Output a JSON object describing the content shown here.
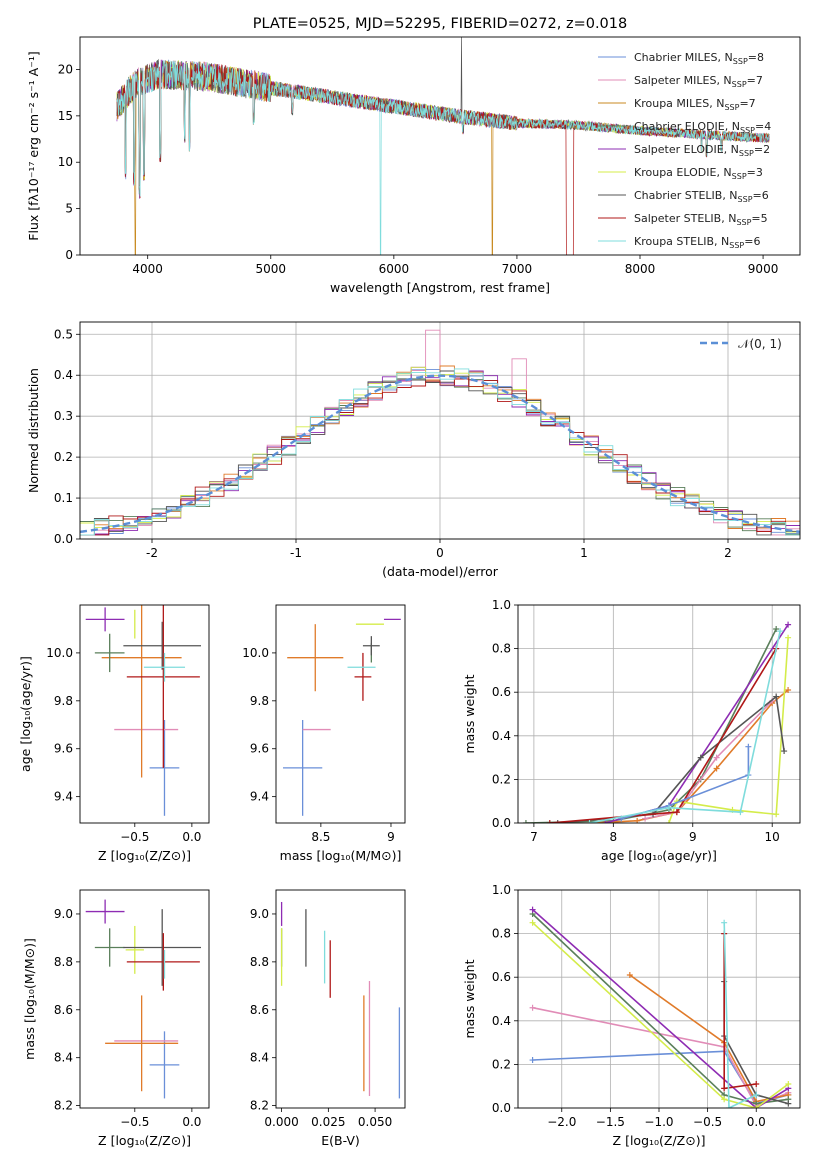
{
  "palette": [
    "#6a8fd8",
    "#e18cb7",
    "#e07b2a",
    "#5a7f5a",
    "#8e2cb3",
    "#d4ec4a",
    "#555555",
    "#b01818",
    "#7fdcdc"
  ],
  "chart_data": [
    {
      "id": "spectrum",
      "type": "line",
      "title": "PLATE=0525, MJD=52295, FIBERID=0272, z=0.018",
      "xlabel": "wavelength [Angstrom, rest frame]",
      "ylabel": "Flux [fλ10⁻¹⁷ erg cm⁻² s⁻¹ A⁻¹]",
      "xlim": [
        3450,
        9300
      ],
      "ylim": [
        0,
        23.5
      ],
      "xticks": [
        4000,
        5000,
        6000,
        7000,
        8000,
        9000
      ],
      "yticks": [
        0,
        5,
        10,
        15,
        20
      ],
      "grid": false,
      "legend_position": "top-right",
      "x_range_data": [
        3750,
        9050
      ],
      "continuum": [
        [
          3750,
          16
        ],
        [
          3900,
          18.5
        ],
        [
          4100,
          19.5
        ],
        [
          4500,
          19.2
        ],
        [
          5000,
          18
        ],
        [
          5500,
          17
        ],
        [
          6000,
          16
        ],
        [
          6500,
          15
        ],
        [
          7000,
          14.2
        ],
        [
          7500,
          14
        ],
        [
          8000,
          13.4
        ],
        [
          8500,
          13
        ],
        [
          9000,
          12.6
        ]
      ],
      "absorption_lines": [
        [
          3820,
          8
        ],
        [
          3890,
          7.5
        ],
        [
          3935,
          6
        ],
        [
          3970,
          8
        ],
        [
          4102,
          10
        ],
        [
          4300,
          12
        ],
        [
          4340,
          11
        ],
        [
          4861,
          14
        ],
        [
          5175,
          15
        ],
        [
          5893,
          0
        ],
        [
          6563,
          13
        ],
        [
          6800,
          0
        ],
        [
          7420,
          0
        ],
        [
          8500,
          11
        ],
        [
          8542,
          10.5
        ],
        [
          8662,
          11
        ]
      ],
      "series": [
        {
          "name": "Chabrier MILES",
          "nssp": "8",
          "color": "#6a8fd8"
        },
        {
          "name": "Salpeter MILES",
          "nssp": "7",
          "color": "#e18cb7"
        },
        {
          "name": "Kroupa MILES",
          "nssp": "7",
          "color": "#c88a20"
        },
        {
          "name": "Chabrier ELODIE",
          "nssp": "4",
          "color": "#5a7f5a"
        },
        {
          "name": "Salpeter ELODIE",
          "nssp": "2",
          "color": "#8e2cb3"
        },
        {
          "name": "Kroupa ELODIE",
          "nssp": "3",
          "color": "#d4ec4a"
        },
        {
          "name": "Chabrier STELIB",
          "nssp": "6",
          "color": "#555555"
        },
        {
          "name": "Salpeter STELIB",
          "nssp": "5",
          "color": "#b01818"
        },
        {
          "name": "Kroupa STELIB",
          "nssp": "6",
          "color": "#7fdcdc"
        }
      ]
    },
    {
      "id": "residuals",
      "type": "histogram",
      "xlabel": "(data-model)/error",
      "ylabel": "Normed distribution",
      "xlim": [
        -2.5,
        2.5
      ],
      "ylim": [
        0,
        0.53
      ],
      "xticks": [
        -2,
        -1,
        0,
        1,
        2
      ],
      "yticks": [
        0.0,
        0.1,
        0.2,
        0.3,
        0.4,
        0.5
      ],
      "grid": true,
      "bin_width": 0.1,
      "gaussian_label": "𝒩(0, 1)",
      "gaussian_color": "#5b8fd6",
      "legend_position": "top-right",
      "highlight_bins": {
        "-0.05": 0.51,
        "0.55": 0.44
      }
    },
    {
      "id": "age_vs_Z",
      "type": "errorbar",
      "xlabel": "Z [log₁₀(Z/Z⊙)]",
      "ylabel": "age  [log₁₀(age/yr)]",
      "xlim": [
        -0.98,
        0.15
      ],
      "ylim": [
        9.29,
        10.2
      ],
      "xticks": [
        -0.5,
        0.0
      ],
      "xticklabels": [
        "−0.5",
        "0.0"
      ],
      "yticks": [
        9.4,
        9.6,
        9.8,
        10.0
      ],
      "grid": false,
      "points": [
        {
          "x": -0.24,
          "xerr": 0.13,
          "y": 9.52,
          "yerr": 0.2,
          "color": "#6a8fd8"
        },
        {
          "x": -0.4,
          "xerr": 0.28,
          "y": 9.68,
          "yerr": 0.0,
          "color": "#e18cb7"
        },
        {
          "x": -0.44,
          "xerr": 0.35,
          "y": 9.98,
          "yerr": 0.5,
          "color": "#e07b2a"
        },
        {
          "x": -0.72,
          "xerr": 0.13,
          "y": 10.0,
          "yerr": 0.08,
          "color": "#5a7f5a"
        },
        {
          "x": -0.76,
          "xerr": 0.17,
          "y": 10.14,
          "yerr": 0.05,
          "color": "#8e2cb3"
        },
        {
          "x": -0.5,
          "xerr": 0.0,
          "y": 10.12,
          "yerr": 0.06,
          "color": "#d4ec4a"
        },
        {
          "x": -0.26,
          "xerr": 0.34,
          "y": 10.03,
          "yerr": 0.1,
          "color": "#555555"
        },
        {
          "x": -0.25,
          "xerr": 0.32,
          "y": 9.9,
          "yerr": 0.38,
          "color": "#b01818"
        },
        {
          "x": -0.24,
          "xerr": 0.18,
          "y": 9.94,
          "yerr": 0.06,
          "color": "#7fdcdc"
        }
      ]
    },
    {
      "id": "age_vs_mass",
      "type": "errorbar",
      "xlabel": "mass [log₁₀(M/M⊙)]",
      "ylabel": "",
      "xlim": [
        8.18,
        9.1
      ],
      "ylim": [
        9.29,
        10.2
      ],
      "xticks": [
        8.5,
        9.0
      ],
      "yticks": [
        9.4,
        9.6,
        9.8,
        10.0
      ],
      "grid": false,
      "points": [
        {
          "x": 8.37,
          "xerr": 0.14,
          "y": 9.52,
          "yerr": 0.2,
          "color": "#6a8fd8"
        },
        {
          "x": 8.47,
          "xerr": 0.1,
          "y": 9.68,
          "yerr": 0.0,
          "color": "#e18cb7"
        },
        {
          "x": 8.46,
          "xerr": 0.2,
          "y": 9.98,
          "yerr": 0.14,
          "color": "#e07b2a"
        },
        {
          "x": 8.86,
          "xerr": 0.0,
          "y": 10.0,
          "yerr": 0.04,
          "color": "#5a7f5a"
        },
        {
          "x": 9.01,
          "xerr": 0.06,
          "y": 10.14,
          "yerr": 0.0,
          "color": "#8e2cb3"
        },
        {
          "x": 8.85,
          "xerr": 0.1,
          "y": 10.12,
          "yerr": 0.0,
          "color": "#d4ec4a"
        },
        {
          "x": 8.86,
          "xerr": 0.06,
          "y": 10.03,
          "yerr": 0.04,
          "color": "#555555"
        },
        {
          "x": 8.8,
          "xerr": 0.06,
          "y": 9.9,
          "yerr": 0.1,
          "color": "#b01818"
        },
        {
          "x": 8.79,
          "xerr": 0.1,
          "y": 9.94,
          "yerr": 0.0,
          "color": "#7fdcdc"
        }
      ]
    },
    {
      "id": "mw_vs_age",
      "type": "line",
      "xlabel": "age  [log₁₀(age/yr)]",
      "ylabel": "mass weight",
      "xlim": [
        6.8,
        10.35
      ],
      "ylim": [
        0,
        1
      ],
      "xticks": [
        7,
        8,
        9,
        10
      ],
      "yticks": [
        0.0,
        0.2,
        0.4,
        0.6,
        0.8,
        1.0
      ],
      "grid": true,
      "series": [
        {
          "color": "#5a7f5a",
          "x": [
            6.9,
            8.0,
            8.7,
            9.1,
            10.05
          ],
          "y": [
            0.0,
            0.01,
            0.06,
            0.2,
            0.89
          ]
        },
        {
          "color": "#e07b2a",
          "x": [
            7.7,
            8.3,
            8.8,
            9.3,
            10.0,
            10.2
          ],
          "y": [
            0.0,
            0.01,
            0.05,
            0.25,
            0.55,
            0.61
          ]
        },
        {
          "color": "#e18cb7",
          "x": [
            8.4,
            8.8,
            9.3,
            10.0
          ],
          "y": [
            0.02,
            0.05,
            0.3,
            0.56
          ]
        },
        {
          "color": "#8e2cb3",
          "x": [
            7.9,
            8.7,
            10.2
          ],
          "y": [
            0.0,
            0.08,
            0.91
          ]
        },
        {
          "color": "#d4ec4a",
          "x": [
            8.7,
            8.8,
            9.5,
            10.05,
            10.2
          ],
          "y": [
            0.0,
            0.1,
            0.06,
            0.04,
            0.85
          ]
        },
        {
          "color": "#555555",
          "x": [
            7.3,
            8.5,
            9.1,
            10.05,
            10.15
          ],
          "y": [
            0.0,
            0.04,
            0.3,
            0.58,
            0.33
          ]
        },
        {
          "color": "#b01818",
          "x": [
            7.2,
            8.8,
            10.05
          ],
          "y": [
            0.0,
            0.05,
            0.8
          ]
        },
        {
          "color": "#6a8fd8",
          "x": [
            8.1,
            8.7,
            9.7,
            9.7
          ],
          "y": [
            0.02,
            0.08,
            0.22,
            0.35
          ]
        },
        {
          "color": "#7fdcdc",
          "x": [
            7.7,
            8.7,
            9.6,
            10.1
          ],
          "y": [
            0.0,
            0.07,
            0.05,
            0.88
          ]
        }
      ]
    },
    {
      "id": "mass_vs_Z",
      "type": "errorbar",
      "xlabel": "Z [log₁₀(Z/Z⊙)]",
      "ylabel": "mass [log₁₀(M/M⊙)]",
      "xlim": [
        -0.98,
        0.15
      ],
      "ylim": [
        8.19,
        9.1
      ],
      "xticks": [
        -0.5,
        0.0
      ],
      "xticklabels": [
        "−0.5",
        "0.0"
      ],
      "yticks": [
        8.2,
        8.4,
        8.6,
        8.8,
        9.0
      ],
      "grid": false,
      "points": [
        {
          "x": -0.24,
          "xerr": 0.13,
          "y": 8.37,
          "yerr": 0.14,
          "color": "#6a8fd8"
        },
        {
          "x": -0.4,
          "xerr": 0.28,
          "y": 8.47,
          "yerr": 0.0,
          "color": "#e18cb7"
        },
        {
          "x": -0.44,
          "xerr": 0.32,
          "y": 8.46,
          "yerr": 0.2,
          "color": "#e07b2a"
        },
        {
          "x": -0.72,
          "xerr": 0.13,
          "y": 8.86,
          "yerr": 0.08,
          "color": "#5a7f5a"
        },
        {
          "x": -0.76,
          "xerr": 0.17,
          "y": 9.01,
          "yerr": 0.05,
          "color": "#8e2cb3"
        },
        {
          "x": -0.5,
          "xerr": 0.08,
          "y": 8.85,
          "yerr": 0.1,
          "color": "#d4ec4a"
        },
        {
          "x": -0.26,
          "xerr": 0.34,
          "y": 8.86,
          "yerr": 0.16,
          "color": "#555555"
        },
        {
          "x": -0.25,
          "xerr": 0.32,
          "y": 8.8,
          "yerr": 0.12,
          "color": "#b01818"
        },
        {
          "x": -0.24,
          "xerr": 0.0,
          "y": 8.79,
          "yerr": 0.06,
          "color": "#7fdcdc"
        }
      ]
    },
    {
      "id": "mass_vs_ebv",
      "type": "errorbar",
      "xlabel": "E(B-V)",
      "ylabel": "",
      "xlim": [
        -0.003,
        0.066
      ],
      "ylim": [
        8.19,
        9.1
      ],
      "xticks": [
        0.0,
        0.025,
        0.05
      ],
      "xticklabels": [
        "0.000",
        "0.025",
        "0.050"
      ],
      "yticks": [
        8.2,
        8.4,
        8.6,
        8.8,
        9.0
      ],
      "grid": false,
      "points": [
        {
          "x": 0.063,
          "xerr": 0.0,
          "y": 8.42,
          "yerr": 0.19,
          "color": "#6a8fd8"
        },
        {
          "x": 0.047,
          "xerr": 0.0,
          "y": 8.48,
          "yerr": 0.24,
          "color": "#e18cb7"
        },
        {
          "x": 0.044,
          "xerr": 0.0,
          "y": 8.46,
          "yerr": 0.2,
          "color": "#e07b2a"
        },
        {
          "x": 0.0,
          "xerr": 0.0,
          "y": 8.86,
          "yerr": 0.08,
          "color": "#5a7f5a"
        },
        {
          "x": 0.0,
          "xerr": 0.0,
          "y": 9.0,
          "yerr": 0.05,
          "color": "#8e2cb3"
        },
        {
          "x": 0.0,
          "xerr": 0.0,
          "y": 8.82,
          "yerr": 0.12,
          "color": "#d4ec4a"
        },
        {
          "x": 0.013,
          "xerr": 0.0,
          "y": 8.9,
          "yerr": 0.12,
          "color": "#555555"
        },
        {
          "x": 0.026,
          "xerr": 0.0,
          "y": 8.77,
          "yerr": 0.12,
          "color": "#b01818"
        },
        {
          "x": 0.023,
          "xerr": 0.0,
          "y": 8.82,
          "yerr": 0.11,
          "color": "#7fdcdc"
        }
      ]
    },
    {
      "id": "mw_vs_Z",
      "type": "line",
      "xlabel": "Z [log₁₀(Z/Z⊙)]",
      "ylabel": "mass weight",
      "xlim": [
        -2.45,
        0.45
      ],
      "ylim": [
        0,
        1
      ],
      "xticks": [
        -2.0,
        -1.5,
        -1.0,
        -0.5,
        0.0
      ],
      "xticklabels": [
        "−2.0",
        "−1.5",
        "−1.0",
        "−0.5",
        "0.0"
      ],
      "yticks": [
        0.0,
        0.2,
        0.4,
        0.6,
        0.8,
        1.0
      ],
      "grid": true,
      "series": [
        {
          "color": "#6a8fd8",
          "x": [
            -2.3,
            -0.33,
            0.0,
            0.33
          ],
          "y": [
            0.22,
            0.26,
            0.02,
            0.06
          ]
        },
        {
          "color": "#e18cb7",
          "x": [
            -2.3,
            -0.33,
            0.0,
            0.33
          ],
          "y": [
            0.46,
            0.28,
            0.01,
            0.07
          ]
        },
        {
          "color": "#e07b2a",
          "x": [
            -1.3,
            -0.33,
            0.0,
            0.33
          ],
          "y": [
            0.61,
            0.3,
            0.03,
            0.06
          ]
        },
        {
          "color": "#5a7f5a",
          "x": [
            -2.3,
            -0.33,
            0.0,
            0.33
          ],
          "y": [
            0.89,
            0.06,
            0.02,
            0.04
          ]
        },
        {
          "color": "#8e2cb3",
          "x": [
            -2.3,
            0.0,
            0.33
          ],
          "y": [
            0.91,
            0.0,
            0.09
          ]
        },
        {
          "color": "#d4ec4a",
          "x": [
            -2.3,
            -0.33,
            0.0,
            0.33
          ],
          "y": [
            0.85,
            0.04,
            0.0,
            0.11
          ]
        },
        {
          "color": "#555555",
          "x": [
            -0.33,
            -0.33,
            0.0,
            0.33
          ],
          "y": [
            0.58,
            0.33,
            0.06,
            0.02
          ]
        },
        {
          "color": "#b01818",
          "x": [
            -0.33,
            -0.33,
            0.0
          ],
          "y": [
            0.8,
            0.09,
            0.11
          ]
        },
        {
          "color": "#7fdcdc",
          "x": [
            -0.33,
            -0.28,
            0.0
          ],
          "y": [
            0.85,
            0.0,
            0.06
          ]
        }
      ]
    }
  ]
}
